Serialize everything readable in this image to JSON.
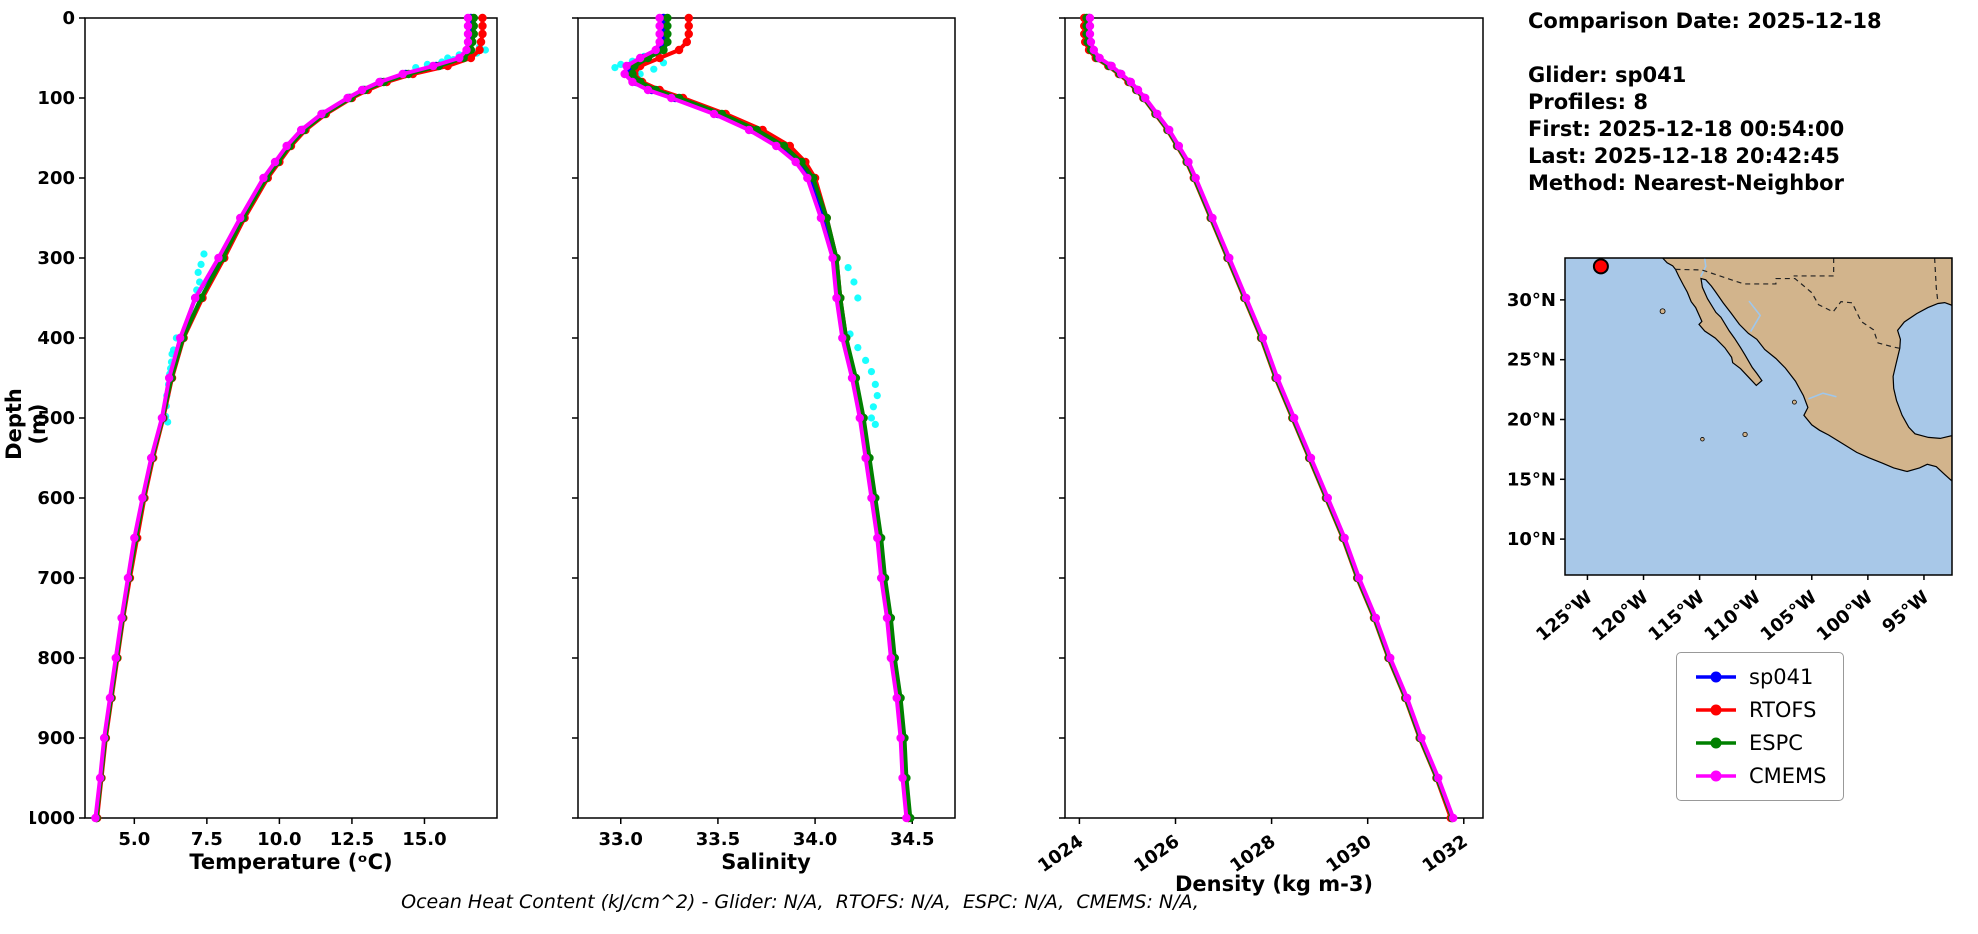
{
  "info_panel": {
    "comparison_date": "Comparison Date: 2025-12-18",
    "glider": "Glider: sp041",
    "profiles": "Profiles: 8",
    "first": "First: 2025-12-18 00:54:00",
    "last": "Last: 2025-12-18 20:42:45",
    "method": "Method: Nearest-Neighbor"
  },
  "footer": "Ocean Heat Content (kJ/cm^2) - Glider: N/A,  RTOFS: N/A,  ESPC: N/A,  CMEMS: N/A,",
  "legend": {
    "items": [
      {
        "label": "sp041",
        "color": "#0000ff"
      },
      {
        "label": "RTOFS",
        "color": "#ff0000"
      },
      {
        "label": "ESPC",
        "color": "#008000"
      },
      {
        "label": "CMEMS",
        "color": "#ff00ff"
      }
    ]
  },
  "depth_ticks": [
    0,
    100,
    200,
    300,
    400,
    500,
    600,
    700,
    800,
    900,
    1000
  ],
  "profile_depths": [
    0,
    10,
    20,
    30,
    40,
    50,
    60,
    70,
    80,
    90,
    100,
    120,
    140,
    160,
    180,
    200,
    250,
    300,
    350,
    400,
    450,
    500,
    550,
    600,
    650,
    700,
    750,
    800,
    850,
    900,
    950,
    1000
  ],
  "chart_data": [
    {
      "type": "line",
      "title": "",
      "xlabel": "Temperature (ᵒC)",
      "ylabel": "Depth (m)",
      "xlim": [
        3.3,
        17.5
      ],
      "ylim": [
        1000,
        0
      ],
      "xticks": [
        5.0,
        7.5,
        10.0,
        12.5,
        15.0
      ],
      "xtick_labels": [
        "5.0",
        "7.5",
        "10.0",
        "12.5",
        "15.0"
      ],
      "series": [
        {
          "name": "sp041",
          "color": "#0000ff",
          "values": [
            16.6,
            16.6,
            16.6,
            16.6,
            16.55,
            16.3,
            15.4,
            14.35,
            13.5,
            12.9,
            12.4,
            11.5,
            10.8,
            10.3,
            9.9,
            9.5,
            8.7,
            7.95,
            7.1,
            6.6,
            6.25,
            6.0,
            5.6,
            5.3,
            5.05,
            4.8,
            4.6,
            4.4,
            4.2,
            4.0,
            3.85,
            3.7
          ]
        },
        {
          "name": "RTOFS",
          "color": "#ff0000",
          "values": [
            17.0,
            17.0,
            17.0,
            16.95,
            16.9,
            16.6,
            15.8,
            14.6,
            13.7,
            13.05,
            12.5,
            11.6,
            10.9,
            10.4,
            10.0,
            9.6,
            8.8,
            8.1,
            7.35,
            6.7,
            6.3,
            6.0,
            5.65,
            5.35,
            5.1,
            4.85,
            4.62,
            4.42,
            4.22,
            4.02,
            3.87,
            3.72
          ]
        },
        {
          "name": "ESPC",
          "color": "#008000",
          "values": [
            16.7,
            16.7,
            16.7,
            16.65,
            16.6,
            16.35,
            15.5,
            14.45,
            13.6,
            12.95,
            12.45,
            11.55,
            10.85,
            10.35,
            9.95,
            9.55,
            8.75,
            8.05,
            7.3,
            6.68,
            6.28,
            5.98,
            5.62,
            5.32,
            5.06,
            4.82,
            4.6,
            4.4,
            4.2,
            4.0,
            3.85,
            3.7
          ]
        },
        {
          "name": "CMEMS",
          "color": "#ff00ff",
          "values": [
            16.5,
            16.5,
            16.5,
            16.5,
            16.45,
            16.2,
            15.3,
            14.25,
            13.45,
            12.85,
            12.35,
            11.45,
            10.75,
            10.25,
            9.85,
            9.45,
            8.65,
            7.9,
            7.1,
            6.58,
            6.2,
            5.95,
            5.58,
            5.28,
            5.0,
            4.78,
            4.56,
            4.36,
            4.16,
            3.96,
            3.82,
            3.66
          ]
        }
      ],
      "scatter": {
        "name": "glider-raw",
        "color": "#00ffff",
        "points": [
          [
            16.9,
            36
          ],
          [
            17.1,
            40
          ],
          [
            16.8,
            44
          ],
          [
            16.4,
            48
          ],
          [
            16.0,
            52
          ],
          [
            15.6,
            55
          ],
          [
            15.1,
            58
          ],
          [
            14.7,
            62
          ],
          [
            16.2,
            46
          ],
          [
            15.8,
            50
          ],
          [
            7.4,
            295
          ],
          [
            7.3,
            308
          ],
          [
            7.2,
            318
          ],
          [
            7.25,
            330
          ],
          [
            7.15,
            340
          ],
          [
            6.45,
            400
          ],
          [
            6.35,
            415
          ],
          [
            6.28,
            430
          ],
          [
            6.22,
            445
          ],
          [
            6.18,
            458
          ],
          [
            6.12,
            472
          ],
          [
            6.1,
            485
          ],
          [
            6.08,
            498
          ],
          [
            6.15,
            505
          ],
          [
            6.3,
            420
          ],
          [
            6.25,
            438
          ]
        ]
      }
    },
    {
      "type": "line",
      "title": "",
      "xlabel": "Salinity",
      "ylabel": "Depth (m)",
      "xlim": [
        32.78,
        34.72
      ],
      "ylim": [
        1000,
        0
      ],
      "xticks": [
        33.0,
        33.5,
        34.0,
        34.5
      ],
      "xtick_labels": [
        "33.0",
        "33.5",
        "34.0",
        "34.5"
      ],
      "series": [
        {
          "name": "sp041",
          "color": "#0000ff",
          "values": [
            33.22,
            33.22,
            33.22,
            33.22,
            33.2,
            33.12,
            33.05,
            33.04,
            33.08,
            33.16,
            33.28,
            33.5,
            33.68,
            33.82,
            33.92,
            33.98,
            34.05,
            34.1,
            34.12,
            34.15,
            34.2,
            34.24,
            34.27,
            34.3,
            34.33,
            34.35,
            34.38,
            34.4,
            34.43,
            34.45,
            34.46,
            34.48
          ]
        },
        {
          "name": "RTOFS",
          "color": "#ff0000",
          "values": [
            33.35,
            33.35,
            33.35,
            33.34,
            33.3,
            33.2,
            33.1,
            33.07,
            33.11,
            33.2,
            33.32,
            33.54,
            33.73,
            33.87,
            33.95,
            34.0,
            34.06,
            34.11,
            34.13,
            34.16,
            34.2,
            34.24,
            34.27,
            34.3,
            34.33,
            34.35,
            34.38,
            34.4,
            34.43,
            34.45,
            34.46,
            34.48
          ]
        },
        {
          "name": "ESPC",
          "color": "#008000",
          "values": [
            33.24,
            33.24,
            33.24,
            33.24,
            33.22,
            33.14,
            33.07,
            33.06,
            33.1,
            33.18,
            33.3,
            33.52,
            33.7,
            33.84,
            33.93,
            33.99,
            34.06,
            34.11,
            34.13,
            34.16,
            34.21,
            34.25,
            34.28,
            34.31,
            34.34,
            34.36,
            34.39,
            34.41,
            34.44,
            34.46,
            34.47,
            34.49
          ]
        },
        {
          "name": "CMEMS",
          "color": "#ff00ff",
          "values": [
            33.2,
            33.2,
            33.2,
            33.2,
            33.18,
            33.1,
            33.03,
            33.02,
            33.06,
            33.14,
            33.26,
            33.48,
            33.66,
            33.8,
            33.9,
            33.96,
            34.03,
            34.09,
            34.11,
            34.14,
            34.19,
            34.23,
            34.26,
            34.29,
            34.32,
            34.34,
            34.37,
            34.39,
            34.42,
            34.44,
            34.45,
            34.47
          ]
        }
      ],
      "scatter": {
        "name": "glider-raw",
        "color": "#00ffff",
        "points": [
          [
            33.12,
            48
          ],
          [
            33.06,
            54
          ],
          [
            33.0,
            58
          ],
          [
            32.97,
            62
          ],
          [
            33.04,
            66
          ],
          [
            33.1,
            70
          ],
          [
            33.17,
            64
          ],
          [
            33.22,
            56
          ],
          [
            34.18,
            395
          ],
          [
            34.22,
            412
          ],
          [
            34.26,
            428
          ],
          [
            34.29,
            442
          ],
          [
            34.31,
            458
          ],
          [
            34.32,
            472
          ],
          [
            34.3,
            486
          ],
          [
            34.29,
            500
          ],
          [
            34.31,
            508
          ],
          [
            34.2,
            330
          ],
          [
            34.17,
            312
          ],
          [
            34.22,
            350
          ],
          [
            33.92,
            180
          ],
          [
            33.98,
            200
          ]
        ]
      }
    },
    {
      "type": "line",
      "title": "",
      "xlabel": "Density (kg m-3)",
      "ylabel": "Depth (m)",
      "xlim": [
        1023.7,
        1032.4
      ],
      "ylim": [
        1000,
        0
      ],
      "xticks": [
        1024,
        1026,
        1028,
        1030,
        1032
      ],
      "xtick_labels": [
        "1024",
        "1026",
        "1028",
        "1030",
        "1032"
      ],
      "series": [
        {
          "name": "sp041",
          "color": "#0000ff",
          "values": [
            1024.2,
            1024.2,
            1024.2,
            1024.22,
            1024.28,
            1024.4,
            1024.65,
            1024.85,
            1025.05,
            1025.2,
            1025.35,
            1025.6,
            1025.85,
            1026.05,
            1026.25,
            1026.4,
            1026.75,
            1027.1,
            1027.45,
            1027.8,
            1028.1,
            1028.45,
            1028.8,
            1029.15,
            1029.5,
            1029.8,
            1030.15,
            1030.45,
            1030.8,
            1031.1,
            1031.45,
            1031.75
          ]
        },
        {
          "name": "RTOFS",
          "color": "#ff0000",
          "values": [
            1024.1,
            1024.1,
            1024.1,
            1024.12,
            1024.2,
            1024.34,
            1024.6,
            1024.82,
            1025.02,
            1025.18,
            1025.33,
            1025.58,
            1025.83,
            1026.03,
            1026.23,
            1026.38,
            1026.73,
            1027.08,
            1027.43,
            1027.78,
            1028.08,
            1028.43,
            1028.78,
            1029.13,
            1029.48,
            1029.78,
            1030.13,
            1030.43,
            1030.78,
            1031.08,
            1031.43,
            1031.73
          ]
        },
        {
          "name": "ESPC",
          "color": "#008000",
          "values": [
            1024.15,
            1024.15,
            1024.15,
            1024.17,
            1024.24,
            1024.37,
            1024.62,
            1024.84,
            1025.04,
            1025.19,
            1025.34,
            1025.59,
            1025.84,
            1026.04,
            1026.24,
            1026.39,
            1026.74,
            1027.09,
            1027.44,
            1027.79,
            1028.09,
            1028.44,
            1028.79,
            1029.14,
            1029.49,
            1029.79,
            1030.14,
            1030.44,
            1030.79,
            1031.09,
            1031.44,
            1031.76
          ]
        },
        {
          "name": "CMEMS",
          "color": "#ff00ff",
          "values": [
            1024.22,
            1024.22,
            1024.22,
            1024.24,
            1024.3,
            1024.42,
            1024.67,
            1024.87,
            1025.07,
            1025.22,
            1025.37,
            1025.62,
            1025.87,
            1026.07,
            1026.27,
            1026.42,
            1026.77,
            1027.12,
            1027.47,
            1027.82,
            1028.12,
            1028.47,
            1028.82,
            1029.17,
            1029.52,
            1029.82,
            1030.17,
            1030.47,
            1030.82,
            1031.12,
            1031.47,
            1031.78
          ]
        }
      ],
      "scatter": {
        "name": "glider-raw",
        "color": "#00ffff",
        "points": []
      }
    }
  ],
  "map": {
    "lonlim": [
      -127,
      -92.5
    ],
    "latlim": [
      7,
      33.5
    ],
    "lat_ticks": [
      {
        "value": 30,
        "label": "30°N"
      },
      {
        "value": 25,
        "label": "25°N"
      },
      {
        "value": 20,
        "label": "20°N"
      },
      {
        "value": 15,
        "label": "15°N"
      },
      {
        "value": 10,
        "label": "10°N"
      }
    ],
    "lon_ticks": [
      {
        "value": -125,
        "label": "125°W"
      },
      {
        "value": -120,
        "label": "120°W"
      },
      {
        "value": -115,
        "label": "115°W"
      },
      {
        "value": -110,
        "label": "110°W"
      },
      {
        "value": -105,
        "label": "105°W"
      },
      {
        "value": -100,
        "label": "100°W"
      },
      {
        "value": -95,
        "label": "95°W"
      }
    ],
    "marker": {
      "lon": -123.8,
      "lat": 32.8,
      "color": "#ff0000"
    },
    "colors": {
      "ocean": "#a8c8e8",
      "land": "#d2b48c",
      "coast": "#000000"
    }
  }
}
